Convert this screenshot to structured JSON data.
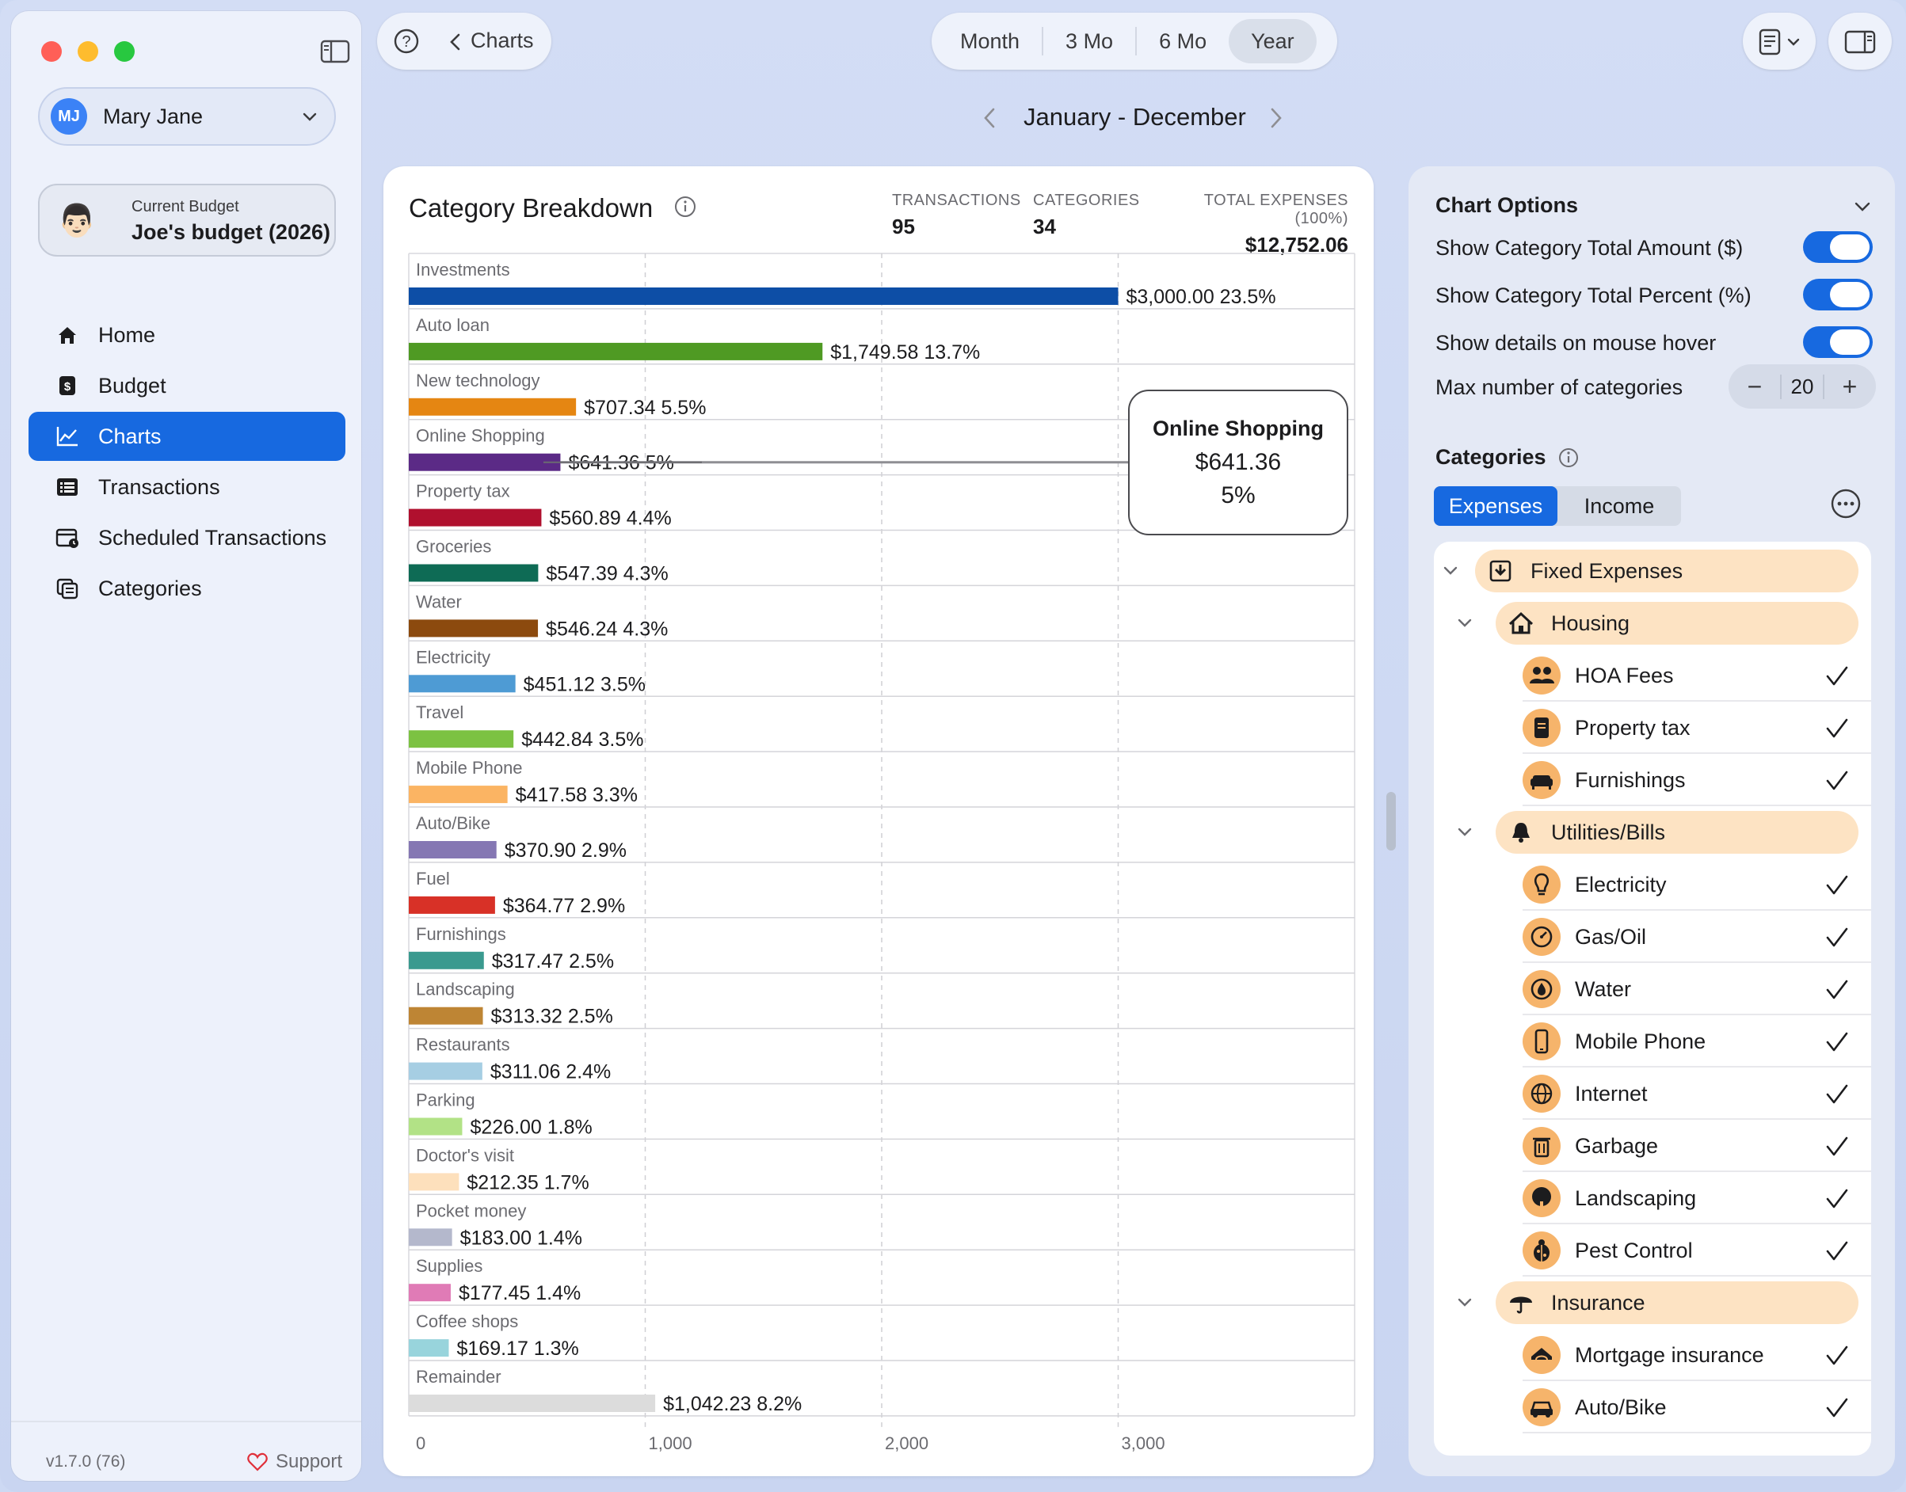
{
  "app": {
    "version": "v1.7.0 (76)",
    "support_label": "Support"
  },
  "user": {
    "initials": "MJ",
    "name": "Mary Jane"
  },
  "budget": {
    "caption": "Current Budget",
    "name": "Joe's budget (2026)"
  },
  "nav": [
    {
      "label": "Home",
      "icon": "house-icon",
      "active": false
    },
    {
      "label": "Budget",
      "icon": "dollar-doc-icon",
      "active": false
    },
    {
      "label": "Charts",
      "icon": "line-chart-icon",
      "active": true
    },
    {
      "label": "Transactions",
      "icon": "list-icon",
      "active": false
    },
    {
      "label": "Scheduled Transactions",
      "icon": "calendar-clock-icon",
      "active": false
    },
    {
      "label": "Categories",
      "icon": "categories-icon",
      "active": false
    }
  ],
  "toolbar": {
    "back_label": "Charts",
    "periods": [
      "Month",
      "3 Mo",
      "6 Mo",
      "Year"
    ],
    "selected_period": "Year",
    "range_label": "January - December"
  },
  "card": {
    "title": "Category Breakdown",
    "stats": [
      {
        "label": "TRANSACTIONS",
        "value": "95"
      },
      {
        "label": "CATEGORIES",
        "value": "34"
      },
      {
        "label": "TOTAL EXPENSES (100%)",
        "value": "$12,752.06"
      }
    ]
  },
  "tooltip": {
    "title": "Online Shopping",
    "amount": "$641.36",
    "percent": "5%"
  },
  "chart_data": {
    "type": "bar",
    "orientation": "horizontal",
    "title": "Category Breakdown",
    "xlim": [
      0,
      4000
    ],
    "x_ticks": [
      "0",
      "1,000",
      "2,000",
      "3,000"
    ],
    "grid": true,
    "bars": [
      {
        "category": "Investments",
        "value": 3000.0,
        "amount_label": "$3,000.00",
        "percent_label": "23.5%",
        "color": "#0d4ea6"
      },
      {
        "category": "Auto loan",
        "value": 1749.58,
        "amount_label": "$1,749.58",
        "percent_label": "13.7%",
        "color": "#4f9a23"
      },
      {
        "category": "New technology",
        "value": 707.34,
        "amount_label": "$707.34",
        "percent_label": "5.5%",
        "color": "#e58612"
      },
      {
        "category": "Online Shopping",
        "value": 641.36,
        "amount_label": "$641.36",
        "percent_label": "5%",
        "color": "#5b2a86"
      },
      {
        "category": "Property tax",
        "value": 560.89,
        "amount_label": "$560.89",
        "percent_label": "4.4%",
        "color": "#b0102e"
      },
      {
        "category": "Groceries",
        "value": 547.39,
        "amount_label": "$547.39",
        "percent_label": "4.3%",
        "color": "#0e6b55"
      },
      {
        "category": "Water",
        "value": 546.24,
        "amount_label": "$546.24",
        "percent_label": "4.3%",
        "color": "#8c4a0e"
      },
      {
        "category": "Electricity",
        "value": 451.12,
        "amount_label": "$451.12",
        "percent_label": "3.5%",
        "color": "#4e9bd4"
      },
      {
        "category": "Travel",
        "value": 442.84,
        "amount_label": "$442.84",
        "percent_label": "3.5%",
        "color": "#7cc242"
      },
      {
        "category": "Mobile Phone",
        "value": 417.58,
        "amount_label": "$417.58",
        "percent_label": "3.3%",
        "color": "#fbb463"
      },
      {
        "category": "Auto/Bike",
        "value": 370.9,
        "amount_label": "$370.90",
        "percent_label": "2.9%",
        "color": "#8577b3"
      },
      {
        "category": "Fuel",
        "value": 364.77,
        "amount_label": "$364.77",
        "percent_label": "2.9%",
        "color": "#d83127"
      },
      {
        "category": "Furnishings",
        "value": 317.47,
        "amount_label": "$317.47",
        "percent_label": "2.5%",
        "color": "#3a9a8f"
      },
      {
        "category": "Landscaping",
        "value": 313.32,
        "amount_label": "$313.32",
        "percent_label": "2.5%",
        "color": "#be8534"
      },
      {
        "category": "Restaurants",
        "value": 311.06,
        "amount_label": "$311.06",
        "percent_label": "2.4%",
        "color": "#a6cee3"
      },
      {
        "category": "Parking",
        "value": 226.0,
        "amount_label": "$226.00",
        "percent_label": "1.8%",
        "color": "#b2e286"
      },
      {
        "category": "Doctor's visit",
        "value": 212.35,
        "amount_label": "$212.35",
        "percent_label": "1.7%",
        "color": "#fde0bc"
      },
      {
        "category": "Pocket money",
        "value": 183.0,
        "amount_label": "$183.00",
        "percent_label": "1.4%",
        "color": "#b4b8cc"
      },
      {
        "category": "Supplies",
        "value": 177.45,
        "amount_label": "$177.45",
        "percent_label": "1.4%",
        "color": "#e07bb6"
      },
      {
        "category": "Coffee shops",
        "value": 169.17,
        "amount_label": "$169.17",
        "percent_label": "1.3%",
        "color": "#98d4dc"
      },
      {
        "category": "Remainder",
        "value": 1042.23,
        "amount_label": "$1,042.23",
        "percent_label": "8.2%",
        "color": "#dcdcdc"
      }
    ]
  },
  "options": {
    "title": "Chart Options",
    "rows": [
      {
        "label": "Show Category Total Amount ($)",
        "on": true
      },
      {
        "label": "Show Category Total Percent (%)",
        "on": true
      },
      {
        "label": "Show details on mouse hover",
        "on": true
      }
    ],
    "max_label": "Max number of categories",
    "max_value": "20"
  },
  "categories": {
    "title": "Categories",
    "tabs": [
      "Expenses",
      "Income"
    ],
    "selected_tab": "Expenses",
    "tree": [
      {
        "kind": "group",
        "level": 0,
        "label": "Fixed Expenses",
        "icon": "pin-icon"
      },
      {
        "kind": "group",
        "level": 1,
        "label": "Housing",
        "icon": "house-icon"
      },
      {
        "kind": "item",
        "label": "HOA Fees",
        "icon": "people-icon",
        "checked": true
      },
      {
        "kind": "item",
        "label": "Property tax",
        "icon": "document-icon",
        "checked": true
      },
      {
        "kind": "item",
        "label": "Furnishings",
        "icon": "sofa-icon",
        "checked": true
      },
      {
        "kind": "group",
        "level": 1,
        "label": "Utilities/Bills",
        "icon": "bell-icon"
      },
      {
        "kind": "item",
        "label": "Electricity",
        "icon": "lightbulb-icon",
        "checked": true
      },
      {
        "kind": "item",
        "label": "Gas/Oil",
        "icon": "gauge-icon",
        "checked": true
      },
      {
        "kind": "item",
        "label": "Water",
        "icon": "drop-icon",
        "checked": true
      },
      {
        "kind": "item",
        "label": "Mobile Phone",
        "icon": "phone-icon",
        "checked": true
      },
      {
        "kind": "item",
        "label": "Internet",
        "icon": "globe-icon",
        "checked": true
      },
      {
        "kind": "item",
        "label": "Garbage",
        "icon": "trash-icon",
        "checked": true
      },
      {
        "kind": "item",
        "label": "Landscaping",
        "icon": "tree-icon",
        "checked": true
      },
      {
        "kind": "item",
        "label": "Pest Control",
        "icon": "ladybug-icon",
        "checked": true
      },
      {
        "kind": "group",
        "level": 1,
        "label": "Insurance",
        "icon": "umbrella-icon"
      },
      {
        "kind": "item",
        "label": "Mortgage insurance",
        "icon": "house-shield-icon",
        "checked": true
      },
      {
        "kind": "item",
        "label": "Auto/Bike",
        "icon": "car-icon",
        "checked": true
      }
    ]
  }
}
